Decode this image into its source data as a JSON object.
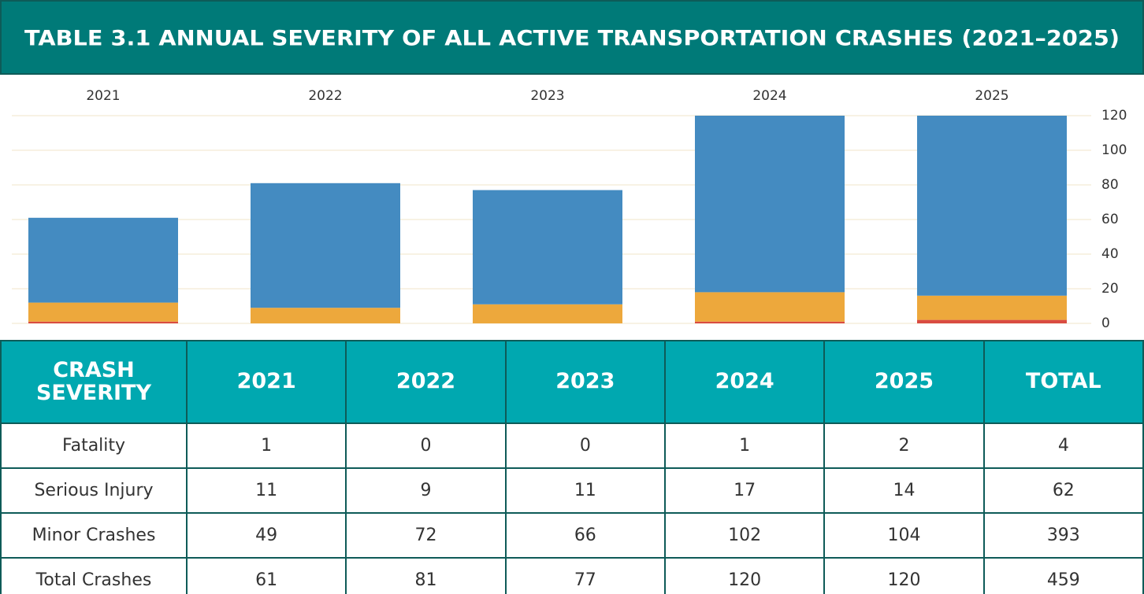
{
  "chart_data": {
    "type": "stacked-bar",
    "title": "TABLE 3.1 ANNUAL SEVERITY OF ALL ACTIVE TRANSPORTATION CRASHES (2021–2025)",
    "categories": [
      "2021",
      "2022",
      "2023",
      "2024",
      "2025"
    ],
    "series": [
      {
        "color": "#d94b41",
        "values": [
          1,
          0,
          0,
          1,
          2
        ]
      },
      {
        "color": "#eda83c",
        "values": [
          11,
          9,
          11,
          17,
          14
        ]
      },
      {
        "color": "#448bc1",
        "values": [
          49,
          72,
          66,
          102,
          104
        ]
      }
    ],
    "ylim": [
      0,
      120
    ],
    "yticks": [
      0,
      20,
      40,
      60,
      80,
      100,
      120
    ],
    "grid": true
  },
  "table": {
    "header": [
      "CRASH SEVERITY",
      "2021",
      "2022",
      "2023",
      "2024",
      "2025",
      "TOTAL"
    ],
    "rows": [
      [
        "Fatality",
        1,
        0,
        0,
        1,
        2,
        4
      ],
      [
        "Serious Injury",
        11,
        9,
        11,
        17,
        14,
        62
      ],
      [
        "Minor Crashes",
        49,
        72,
        66,
        102,
        104,
        393
      ],
      [
        "Total Crashes",
        61,
        81,
        77,
        120,
        120,
        459
      ]
    ]
  }
}
